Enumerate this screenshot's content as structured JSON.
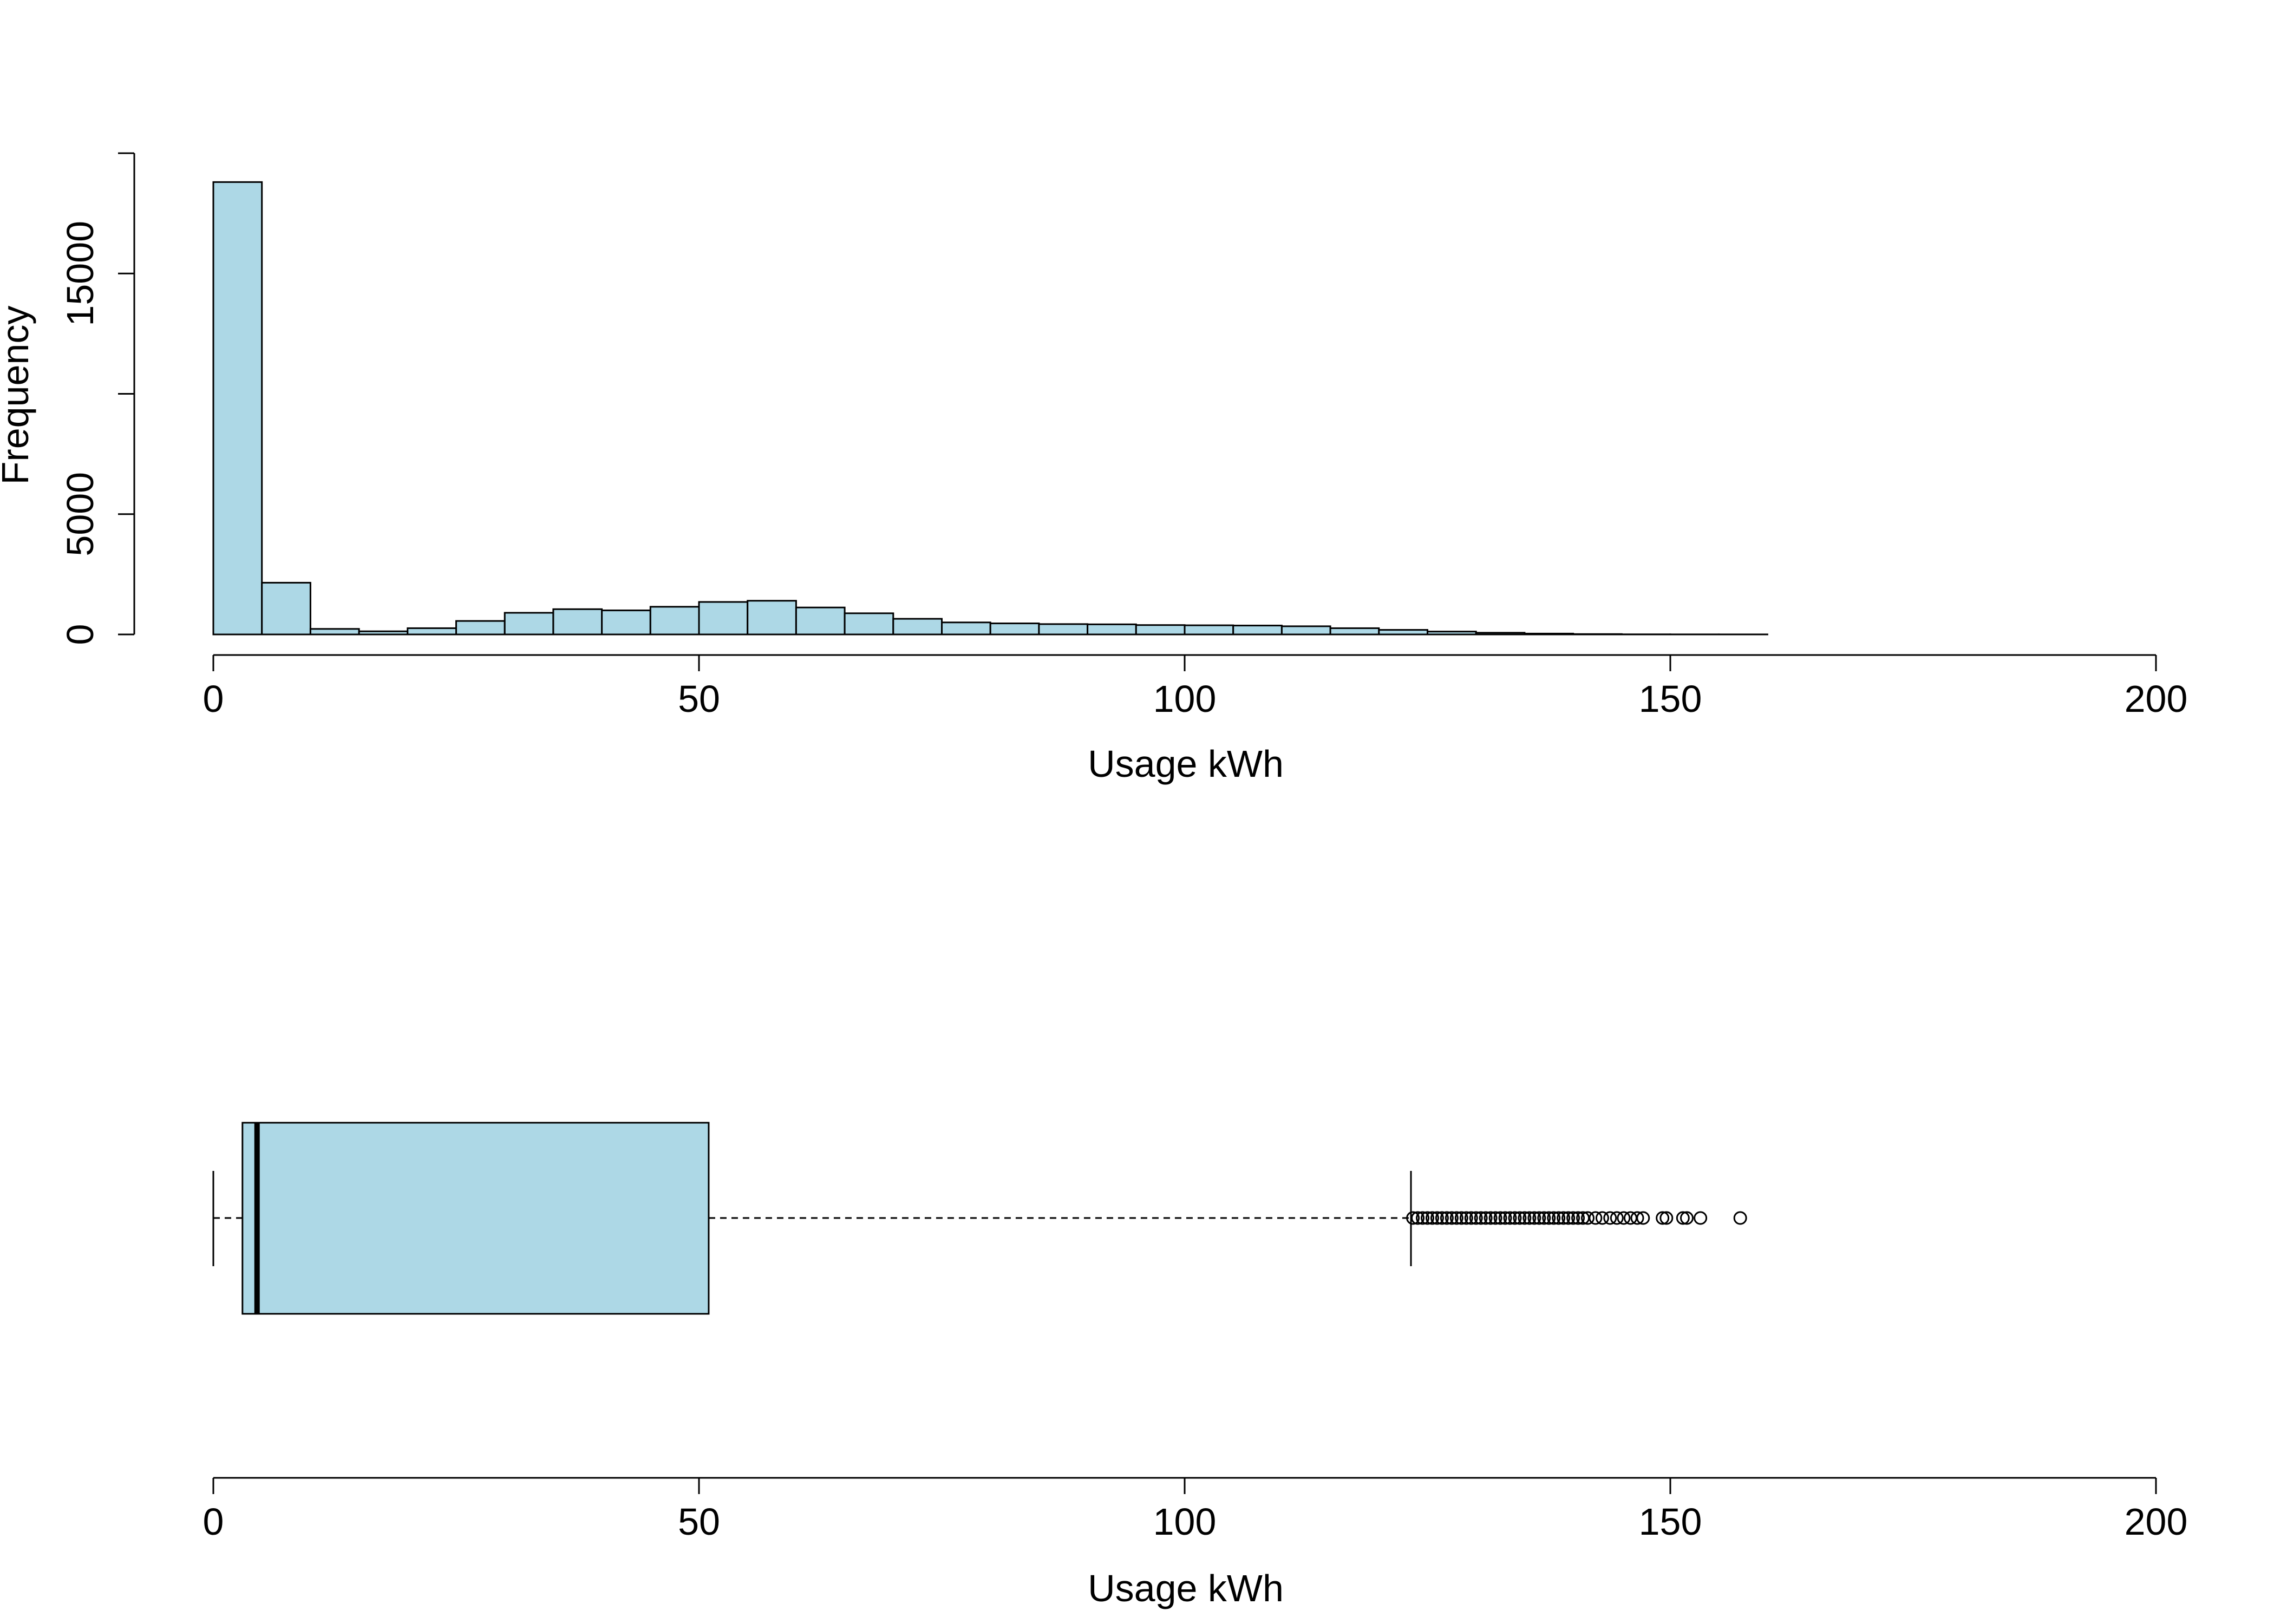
{
  "colors": {
    "fill": "#add8e6",
    "stroke": "#000000",
    "background": "#ffffff"
  },
  "chart_data": [
    {
      "type": "bar",
      "subtype": "histogram",
      "title": "",
      "xlabel": "Usage kWh",
      "ylabel": "Frequency",
      "xlim": [
        0,
        200
      ],
      "ylim": [
        0,
        20000
      ],
      "bin_width": 5,
      "bins": [
        {
          "start": 0,
          "end": 5,
          "count": 18800
        },
        {
          "start": 5,
          "end": 10,
          "count": 2150
        },
        {
          "start": 10,
          "end": 15,
          "count": 230
        },
        {
          "start": 15,
          "end": 20,
          "count": 130
        },
        {
          "start": 20,
          "end": 25,
          "count": 260
        },
        {
          "start": 25,
          "end": 30,
          "count": 560
        },
        {
          "start": 30,
          "end": 35,
          "count": 900
        },
        {
          "start": 35,
          "end": 40,
          "count": 1050
        },
        {
          "start": 40,
          "end": 45,
          "count": 1000
        },
        {
          "start": 45,
          "end": 50,
          "count": 1150
        },
        {
          "start": 50,
          "end": 55,
          "count": 1350
        },
        {
          "start": 55,
          "end": 60,
          "count": 1400
        },
        {
          "start": 60,
          "end": 65,
          "count": 1120
        },
        {
          "start": 65,
          "end": 70,
          "count": 880
        },
        {
          "start": 70,
          "end": 75,
          "count": 650
        },
        {
          "start": 75,
          "end": 80,
          "count": 500
        },
        {
          "start": 80,
          "end": 85,
          "count": 460
        },
        {
          "start": 85,
          "end": 90,
          "count": 430
        },
        {
          "start": 90,
          "end": 95,
          "count": 420
        },
        {
          "start": 95,
          "end": 100,
          "count": 390
        },
        {
          "start": 100,
          "end": 105,
          "count": 380
        },
        {
          "start": 105,
          "end": 110,
          "count": 370
        },
        {
          "start": 110,
          "end": 115,
          "count": 340
        },
        {
          "start": 115,
          "end": 120,
          "count": 260
        },
        {
          "start": 120,
          "end": 125,
          "count": 190
        },
        {
          "start": 125,
          "end": 130,
          "count": 120
        },
        {
          "start": 130,
          "end": 135,
          "count": 70
        },
        {
          "start": 135,
          "end": 140,
          "count": 35
        },
        {
          "start": 140,
          "end": 145,
          "count": 15
        },
        {
          "start": 145,
          "end": 150,
          "count": 5
        },
        {
          "start": 150,
          "end": 155,
          "count": 3
        },
        {
          "start": 155,
          "end": 160,
          "count": 2
        }
      ],
      "x_ticks": [
        "0",
        "50",
        "100",
        "150",
        "200"
      ],
      "y_ticks": [
        {
          "value": 0,
          "label": "0"
        },
        {
          "value": 5000,
          "label": "5000"
        },
        {
          "value": 10000,
          "label": ""
        },
        {
          "value": 15000,
          "label": "15000"
        },
        {
          "value": 20000,
          "label": ""
        }
      ],
      "grid": false
    },
    {
      "type": "boxplot",
      "orientation": "horizontal",
      "title": "",
      "xlabel": "Usage kWh",
      "xlim": [
        0,
        200
      ],
      "x_ticks": [
        "0",
        "50",
        "100",
        "150",
        "200"
      ],
      "whisker_low": 0,
      "q1": 3,
      "median": 4.5,
      "q3": 51,
      "whisker_high": 123.3,
      "outliers": [
        123.5,
        124,
        124.5,
        125,
        125.5,
        126,
        126.5,
        127,
        127.5,
        128,
        128.5,
        129,
        129.5,
        130,
        130.5,
        131,
        131.5,
        132,
        132.5,
        133,
        133.5,
        134,
        134.5,
        135,
        135.5,
        136,
        136.5,
        137,
        137.5,
        138,
        138.5,
        139,
        139.5,
        140,
        140.5,
        141,
        141.5,
        142.3,
        143,
        143.8,
        144.5,
        145.2,
        145.9,
        146.6,
        147.2,
        149.2,
        149.6,
        151.3,
        151.7,
        153.1,
        157.2
      ],
      "grid": false
    }
  ]
}
